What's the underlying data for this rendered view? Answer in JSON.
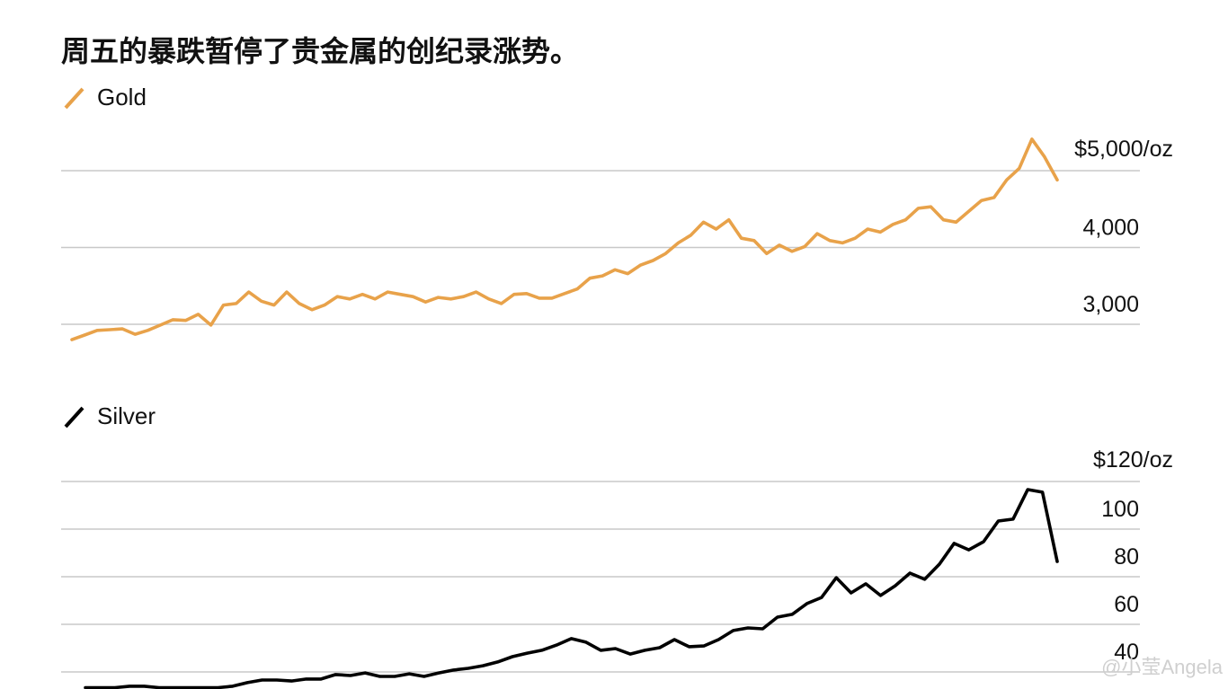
{
  "title": "周五的暴跌暂停了贵金属的创纪录涨势。",
  "watermark": "@小莹Angela",
  "chart_data": [
    {
      "type": "line",
      "legend": "Gold",
      "color": "#e8a24a",
      "grid": true,
      "ylim": [
        2700,
        5500
      ],
      "yticks": [
        {
          "value": 3000,
          "label": "3,000"
        },
        {
          "value": 4000,
          "label": "4,000"
        },
        {
          "value": 5000,
          "label": "$5,000/oz"
        }
      ],
      "values": [
        2800,
        2860,
        2920,
        2930,
        2940,
        2870,
        2920,
        2990,
        3060,
        3050,
        3130,
        2990,
        3250,
        3270,
        3420,
        3300,
        3250,
        3420,
        3270,
        3190,
        3250,
        3360,
        3330,
        3390,
        3330,
        3420,
        3390,
        3360,
        3290,
        3350,
        3330,
        3360,
        3420,
        3330,
        3270,
        3390,
        3400,
        3340,
        3340,
        3400,
        3460,
        3600,
        3630,
        3710,
        3660,
        3770,
        3830,
        3920,
        4060,
        4160,
        4330,
        4240,
        4360,
        4120,
        4090,
        3920,
        4030,
        3950,
        4010,
        4180,
        4090,
        4060,
        4120,
        4240,
        4200,
        4300,
        4360,
        4510,
        4530,
        4360,
        4330,
        4470,
        4610,
        4650,
        4880,
        5030,
        5410,
        5180,
        4880
      ]
    },
    {
      "type": "line",
      "legend": "Silver",
      "color": "#000000",
      "grid": true,
      "ylim": [
        33,
        126
      ],
      "yticks": [
        40,
        60,
        80,
        100,
        {
          "value": 120,
          "label": "$120/oz"
        }
      ],
      "values": [
        33.4,
        33.4,
        33.4,
        34,
        34,
        33.4,
        33.4,
        33.4,
        33.4,
        33.4,
        34,
        35.5,
        36.6,
        36.6,
        36.2,
        37,
        37,
        38.9,
        38.5,
        39.6,
        38.1,
        38.1,
        39.2,
        38.1,
        39.6,
        40.8,
        41.5,
        42.6,
        44.2,
        46.4,
        47.9,
        49.1,
        51.3,
        54,
        52.5,
        49.1,
        49.8,
        47.5,
        49.1,
        50.2,
        53.6,
        50.6,
        50.9,
        53.6,
        57.4,
        58.5,
        58.1,
        63,
        64.2,
        68.7,
        71.3,
        79.6,
        73.2,
        77,
        72.1,
        76.2,
        81.5,
        78.9,
        85.3,
        94,
        91.3,
        94.7,
        103.4,
        104.2,
        116.6,
        115.5,
        86.4
      ]
    }
  ]
}
